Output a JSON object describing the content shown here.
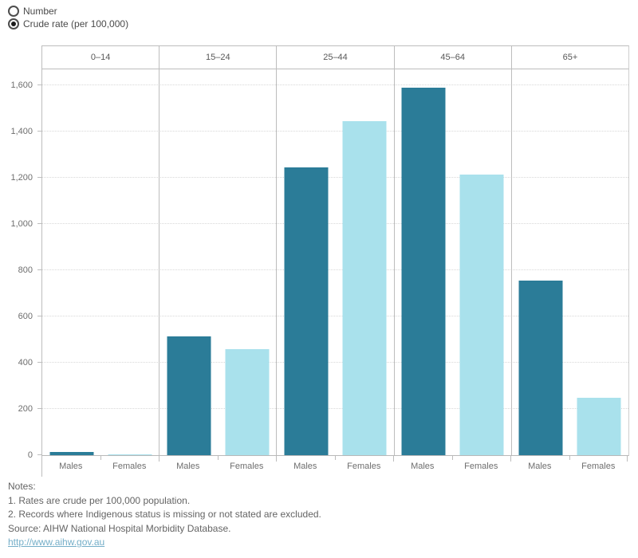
{
  "controls": {
    "radio_options": [
      {
        "label": "Number",
        "selected": false
      },
      {
        "label": "Crude rate (per 100,000)",
        "selected": true
      }
    ]
  },
  "chart_data": {
    "type": "bar",
    "title": "",
    "panel_headers": [
      "0–14",
      "15–24",
      "25–44",
      "45–64",
      "65+"
    ],
    "x_sublabels": [
      "Males",
      "Females"
    ],
    "series": [
      {
        "name": "Males",
        "color": "#2b7c98",
        "values": [
          15,
          515,
          1245,
          1590,
          755
        ]
      },
      {
        "name": "Females",
        "color": "#a9e1ec",
        "values": [
          3,
          458,
          1445,
          1215,
          248
        ]
      }
    ],
    "unit": "Crude rate (per 100,000)",
    "ylabel": "",
    "ylim": [
      0,
      1670
    ],
    "yticks": [
      0,
      200,
      400,
      600,
      800,
      1000,
      1200,
      1400,
      1600
    ],
    "ytick_labels": [
      "0",
      "200",
      "400",
      "600",
      "800",
      "1,000",
      "1,200",
      "1,400",
      "1,600"
    ],
    "grid": "horizontal-dotted",
    "legend": "none"
  },
  "colors": {
    "males_bar": "#2b7c98",
    "females_bar": "#a9e1ec",
    "link": "#74aec8",
    "axis_line": "#bdbdbd"
  },
  "notes": {
    "title": "Notes:",
    "lines": [
      "1. Rates are crude per 100,000 population.",
      "2. Records where Indigenous status is missing or not stated are excluded.",
      "Source: AIHW National Hospital Morbidity Database."
    ],
    "link": "http://www.aihw.gov.au"
  }
}
